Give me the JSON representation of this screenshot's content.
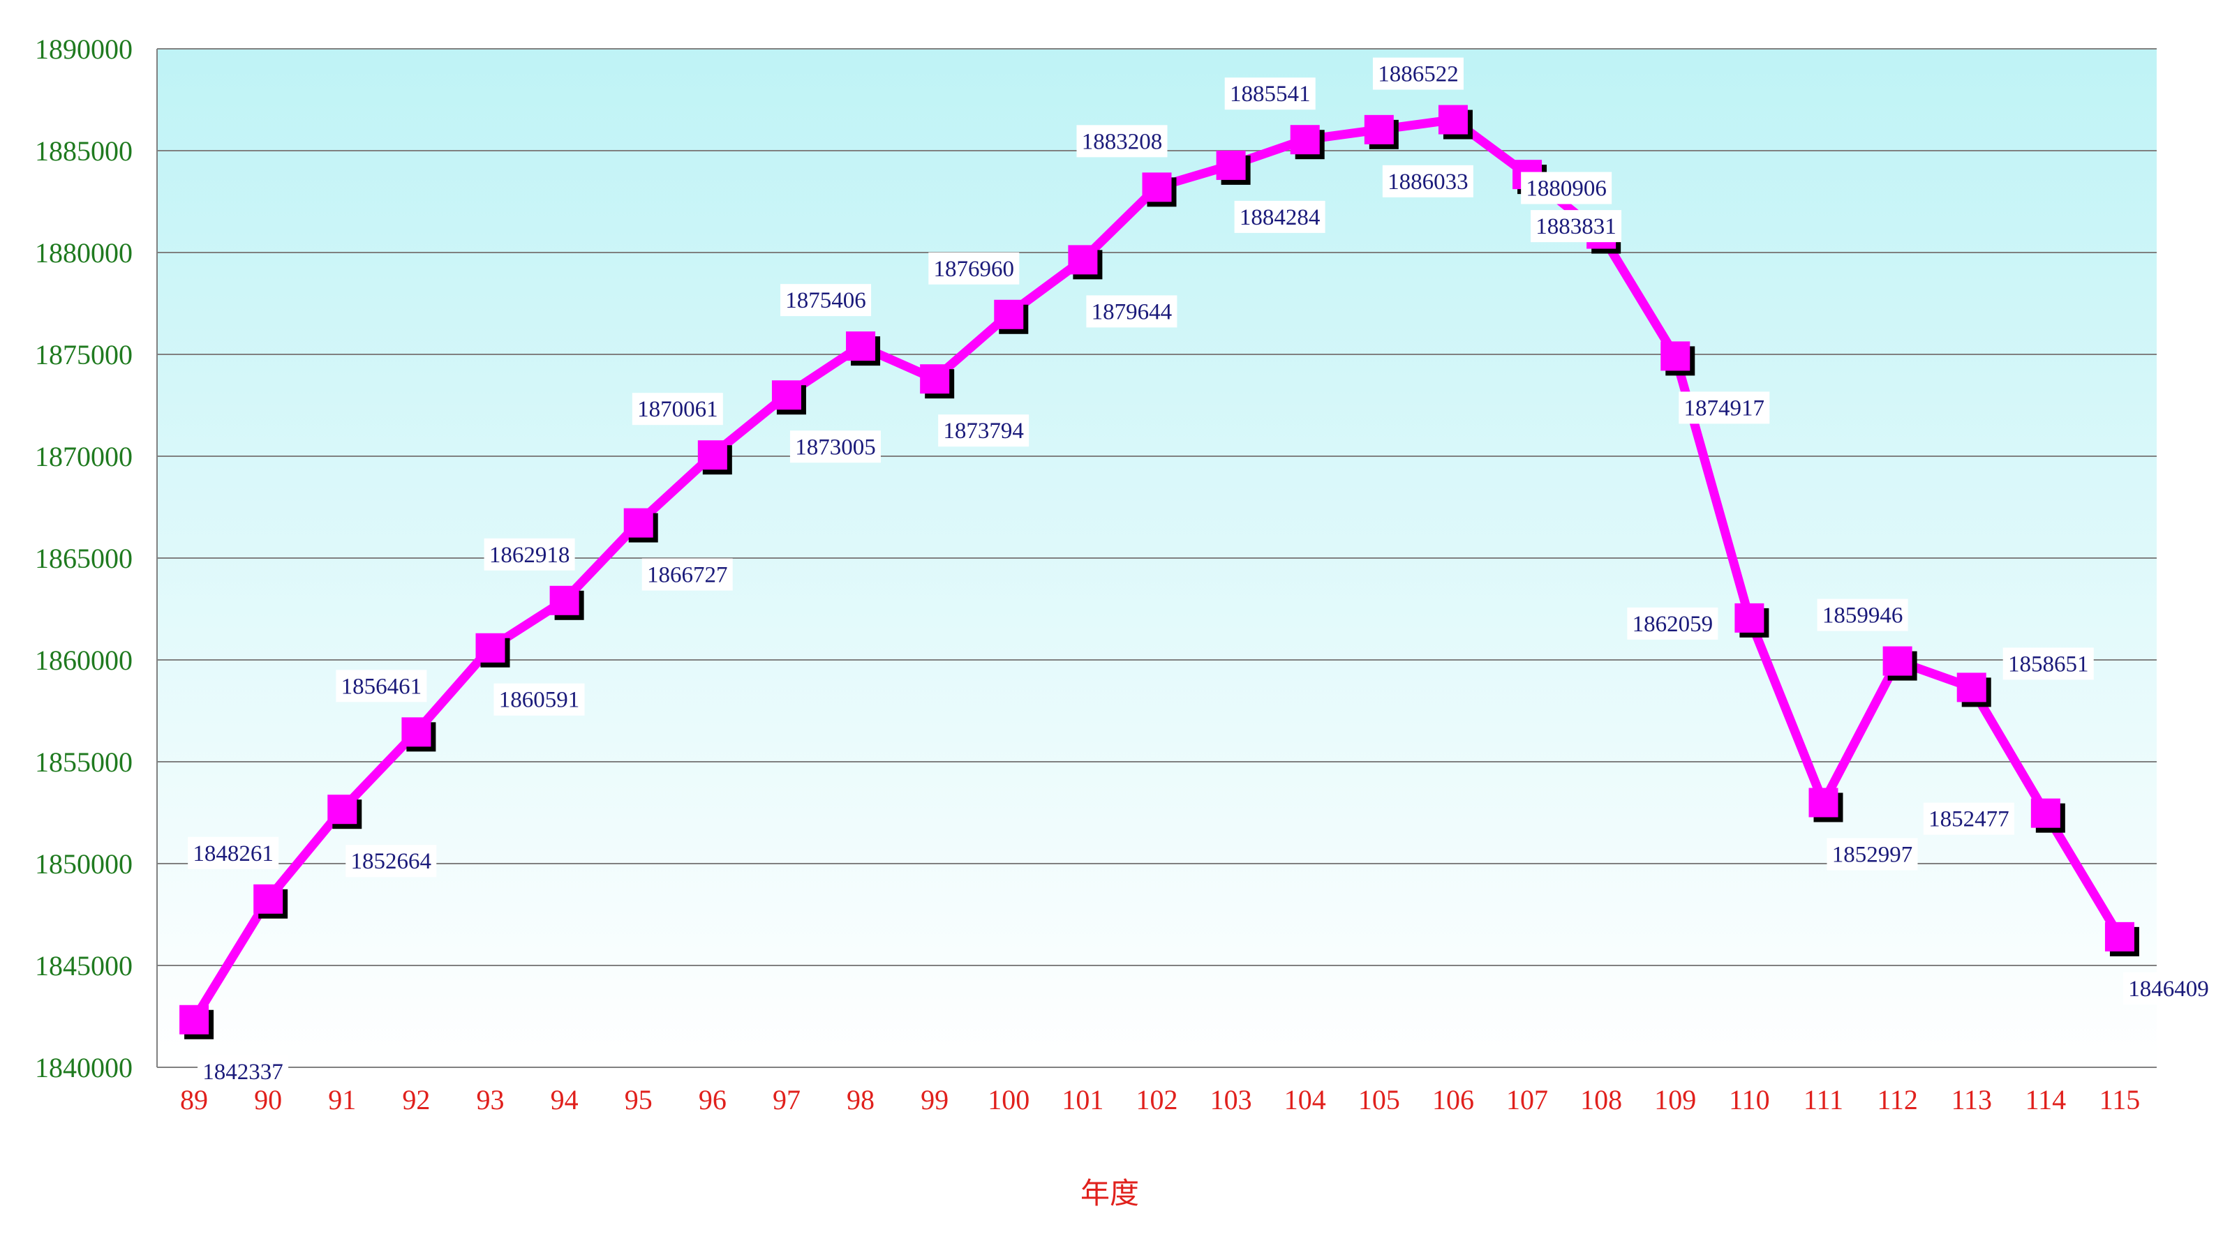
{
  "chart_data": {
    "type": "line",
    "xlabel": "年度",
    "ylabel": "",
    "ylim": [
      1840000,
      1890000
    ],
    "yticks": [
      1840000,
      1845000,
      1850000,
      1855000,
      1860000,
      1865000,
      1870000,
      1875000,
      1880000,
      1885000,
      1890000
    ],
    "grid": true,
    "legend": "none",
    "categories": [
      "89",
      "90",
      "91",
      "92",
      "93",
      "94",
      "95",
      "96",
      "97",
      "98",
      "99",
      "100",
      "101",
      "102",
      "103",
      "104",
      "105",
      "106",
      "107",
      "108",
      "109",
      "110",
      "111",
      "112",
      "113",
      "114",
      "115"
    ],
    "series": [
      {
        "values": [
          1842337,
          1848261,
          1852664,
          1856461,
          1860591,
          1862918,
          1866727,
          1870061,
          1873005,
          1875406,
          1873794,
          1876960,
          1879644,
          1883208,
          1884284,
          1885541,
          1886033,
          1886522,
          1883831,
          1880906,
          1874917,
          1862059,
          1852997,
          1859946,
          1858651,
          1852477,
          1846409
        ],
        "label_positions": [
          "below",
          "above",
          "below",
          "above",
          "below",
          "above",
          "below",
          "above",
          "below",
          "above",
          "below",
          "above",
          "below",
          "above",
          "below",
          "above",
          "below",
          "above",
          "below",
          "above",
          "below",
          "left",
          "below",
          "above",
          "right",
          "left",
          "below"
        ],
        "color": "#ff00ff",
        "marker_color": "#ff00ff",
        "marker_shadow": "#000000"
      }
    ],
    "colors": {
      "plot_top": "#bff3f6",
      "plot_bottom": "#ffffff",
      "gridline": "#808080",
      "ytick_text": "#1f7a1f",
      "xtick_text": "#e0201c",
      "xlabel_text": "#e0201c",
      "data_label_text": "#1a1a7a"
    }
  }
}
